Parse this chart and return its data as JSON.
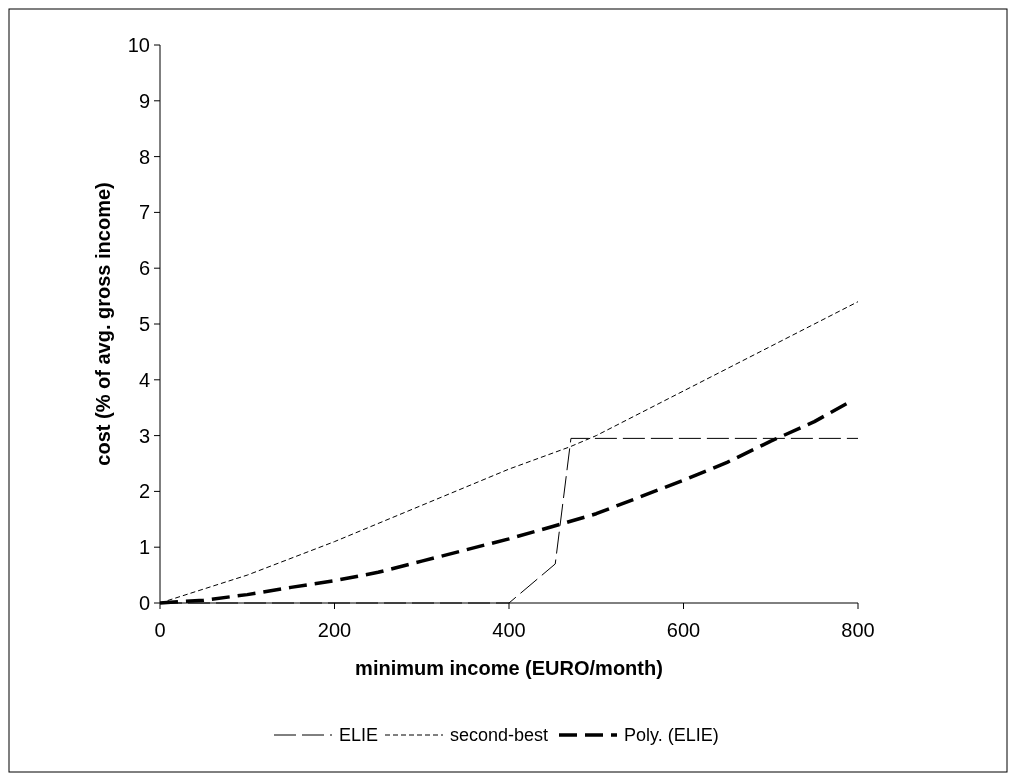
{
  "chart_data": {
    "type": "line",
    "xlabel": "minimum income (EURO/month)",
    "ylabel": "cost (% of avg. gross income)",
    "xlim": [
      0,
      800
    ],
    "xticks": [
      0,
      200,
      400,
      600,
      800
    ],
    "ylim": [
      0,
      10
    ],
    "yticks": [
      0,
      1,
      2,
      3,
      4,
      5,
      6,
      7,
      8,
      9,
      10
    ],
    "grid": false,
    "legend": "bottom",
    "marker": "none",
    "series": [
      {
        "name": "ELIE",
        "color": "#000000",
        "line_style": "dashed",
        "x": [
          0,
          400,
          453,
          471,
          800
        ],
        "values": [
          0,
          0,
          0.7,
          2.95,
          2.95
        ]
      },
      {
        "name": "second-best",
        "color": "#000000",
        "line_style": "dotted",
        "x": [
          0,
          100,
          200,
          300,
          400,
          470,
          500,
          600,
          700,
          800
        ],
        "values": [
          0,
          0.5,
          1.1,
          1.75,
          2.4,
          2.8,
          3.0,
          3.8,
          4.6,
          5.4
        ]
      },
      {
        "name": "Poly. (ELIE)",
        "color": "#000000",
        "line_style": "dashed",
        "x": [
          0,
          50,
          100,
          150,
          200,
          250,
          300,
          350,
          400,
          450,
          500,
          550,
          600,
          650,
          700,
          750,
          790
        ],
        "values": [
          0,
          0.05,
          0.15,
          0.28,
          0.4,
          0.55,
          0.75,
          0.95,
          1.15,
          1.37,
          1.6,
          1.9,
          2.2,
          2.52,
          2.9,
          3.25,
          3.6
        ]
      }
    ]
  }
}
